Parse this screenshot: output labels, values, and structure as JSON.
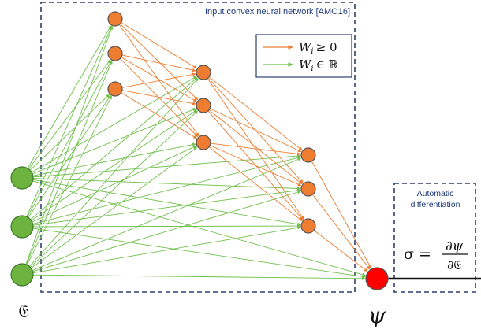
{
  "icnn_box": {
    "caption": "Input convex neural network [AMO16]"
  },
  "legend": {
    "items": [
      {
        "label": "W_i ≥ 0",
        "text": "W",
        "sub": "i",
        "rel": "≥ 0",
        "color": "#ee7d31"
      },
      {
        "label": "W_i ∈ ℝ",
        "text": "W",
        "sub": "i",
        "rel": "∈ ℝ",
        "color": "#6fbf4a"
      }
    ]
  },
  "autodiff_box": {
    "title_line1": "Automatic",
    "title_line2": "differentiation",
    "formula_lhs": "σ =",
    "formula_num": "∂ψ",
    "formula_den": "∂𝔈"
  },
  "input_symbol": "𝔈",
  "output_symbol": "ψ",
  "colors": {
    "input_node": "#6cb33f",
    "hidden_node": "#ee7d31",
    "output_node": "#ff0000",
    "edge_positive": "#ee7d31",
    "edge_real": "#6fbf4a",
    "box_border": "#2e3f6e"
  }
}
